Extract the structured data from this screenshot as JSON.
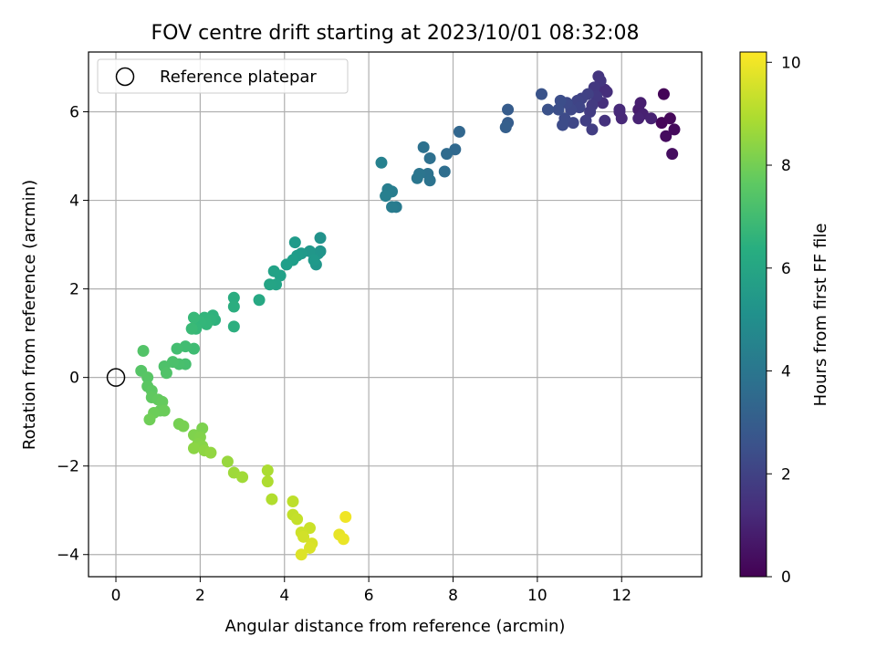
{
  "chart_data": {
    "type": "scatter",
    "title": "FOV centre drift starting at 2023/10/01 08:32:08",
    "xlabel": "Angular distance from reference (arcmin)",
    "ylabel": "Rotation from reference (arcmin)",
    "xlim": [
      -0.65,
      13.9
    ],
    "ylim": [
      -4.5,
      7.35
    ],
    "xticks": [
      0,
      2,
      4,
      6,
      8,
      10,
      12
    ],
    "yticks": [
      -4,
      -2,
      0,
      2,
      4,
      6
    ],
    "grid": true,
    "legend": {
      "location": "upper-left",
      "entries": [
        "Reference platepar"
      ]
    },
    "reference_point": {
      "x": 0,
      "y": 0,
      "label": "Reference platepar"
    },
    "colorbar": {
      "label": "Hours from first FF file",
      "range": [
        0,
        10.2
      ],
      "ticks": [
        0,
        2,
        4,
        6,
        8,
        10
      ],
      "colormap": "viridis"
    },
    "points": [
      {
        "x": 13.0,
        "y": 6.4,
        "h": 0.1
      },
      {
        "x": 12.95,
        "y": 5.75,
        "h": 0.15
      },
      {
        "x": 13.15,
        "y": 5.85,
        "h": 0.2
      },
      {
        "x": 13.25,
        "y": 5.6,
        "h": 0.25
      },
      {
        "x": 13.05,
        "y": 5.45,
        "h": 0.3
      },
      {
        "x": 13.2,
        "y": 5.05,
        "h": 0.35
      },
      {
        "x": 12.4,
        "y": 6.05,
        "h": 0.8
      },
      {
        "x": 12.45,
        "y": 6.2,
        "h": 0.85
      },
      {
        "x": 12.5,
        "y": 5.95,
        "h": 0.9
      },
      {
        "x": 12.7,
        "y": 5.85,
        "h": 0.95
      },
      {
        "x": 12.4,
        "y": 5.85,
        "h": 1.0
      },
      {
        "x": 11.95,
        "y": 6.0,
        "h": 1.1
      },
      {
        "x": 12.0,
        "y": 5.85,
        "h": 1.15
      },
      {
        "x": 11.95,
        "y": 6.05,
        "h": 1.2
      },
      {
        "x": 11.6,
        "y": 6.5,
        "h": 1.3
      },
      {
        "x": 11.65,
        "y": 6.45,
        "h": 1.35
      },
      {
        "x": 11.55,
        "y": 6.2,
        "h": 1.4
      },
      {
        "x": 11.6,
        "y": 5.8,
        "h": 1.45
      },
      {
        "x": 11.45,
        "y": 6.8,
        "h": 1.55
      },
      {
        "x": 11.5,
        "y": 6.7,
        "h": 1.6
      },
      {
        "x": 11.35,
        "y": 6.55,
        "h": 1.65
      },
      {
        "x": 11.4,
        "y": 6.35,
        "h": 1.7
      },
      {
        "x": 11.3,
        "y": 6.15,
        "h": 1.75
      },
      {
        "x": 11.25,
        "y": 6.0,
        "h": 1.8
      },
      {
        "x": 11.3,
        "y": 5.6,
        "h": 1.85
      },
      {
        "x": 11.15,
        "y": 5.8,
        "h": 1.9
      },
      {
        "x": 11.2,
        "y": 6.4,
        "h": 1.95
      },
      {
        "x": 11.05,
        "y": 6.3,
        "h": 2.0
      },
      {
        "x": 10.95,
        "y": 6.25,
        "h": 2.05
      },
      {
        "x": 11.0,
        "y": 6.1,
        "h": 2.1
      },
      {
        "x": 10.85,
        "y": 5.75,
        "h": 2.15
      },
      {
        "x": 10.8,
        "y": 6.05,
        "h": 2.2
      },
      {
        "x": 10.7,
        "y": 6.2,
        "h": 2.25
      },
      {
        "x": 10.65,
        "y": 5.85,
        "h": 2.3
      },
      {
        "x": 10.6,
        "y": 5.7,
        "h": 2.35
      },
      {
        "x": 10.55,
        "y": 6.25,
        "h": 2.4
      },
      {
        "x": 10.5,
        "y": 6.05,
        "h": 2.45
      },
      {
        "x": 10.25,
        "y": 6.05,
        "h": 2.55
      },
      {
        "x": 10.1,
        "y": 6.4,
        "h": 2.6
      },
      {
        "x": 9.3,
        "y": 6.05,
        "h": 2.95
      },
      {
        "x": 9.3,
        "y": 5.75,
        "h": 3.0
      },
      {
        "x": 9.25,
        "y": 5.65,
        "h": 3.05
      },
      {
        "x": 8.15,
        "y": 5.55,
        "h": 3.35
      },
      {
        "x": 8.05,
        "y": 5.15,
        "h": 3.45
      },
      {
        "x": 7.85,
        "y": 5.05,
        "h": 3.55
      },
      {
        "x": 7.8,
        "y": 4.65,
        "h": 3.65
      },
      {
        "x": 7.45,
        "y": 4.95,
        "h": 3.75
      },
      {
        "x": 7.3,
        "y": 5.2,
        "h": 3.8
      },
      {
        "x": 7.4,
        "y": 4.6,
        "h": 3.85
      },
      {
        "x": 7.45,
        "y": 4.45,
        "h": 3.9
      },
      {
        "x": 7.2,
        "y": 4.6,
        "h": 3.95
      },
      {
        "x": 7.15,
        "y": 4.5,
        "h": 4.0
      },
      {
        "x": 6.65,
        "y": 3.85,
        "h": 4.2
      },
      {
        "x": 6.55,
        "y": 3.85,
        "h": 4.25
      },
      {
        "x": 6.55,
        "y": 4.2,
        "h": 4.3
      },
      {
        "x": 6.45,
        "y": 4.25,
        "h": 4.35
      },
      {
        "x": 6.4,
        "y": 4.1,
        "h": 4.4
      },
      {
        "x": 6.3,
        "y": 4.85,
        "h": 4.5
      },
      {
        "x": 4.85,
        "y": 3.15,
        "h": 5.2
      },
      {
        "x": 4.85,
        "y": 2.85,
        "h": 5.25
      },
      {
        "x": 4.8,
        "y": 2.8,
        "h": 5.3
      },
      {
        "x": 4.75,
        "y": 2.55,
        "h": 5.35
      },
      {
        "x": 4.6,
        "y": 2.85,
        "h": 5.4
      },
      {
        "x": 4.7,
        "y": 2.65,
        "h": 5.45
      },
      {
        "x": 4.4,
        "y": 2.8,
        "h": 5.5
      },
      {
        "x": 4.25,
        "y": 3.05,
        "h": 5.55
      },
      {
        "x": 4.3,
        "y": 2.75,
        "h": 5.6
      },
      {
        "x": 4.2,
        "y": 2.65,
        "h": 5.65
      },
      {
        "x": 4.05,
        "y": 2.55,
        "h": 5.7
      },
      {
        "x": 3.9,
        "y": 2.3,
        "h": 5.8
      },
      {
        "x": 3.75,
        "y": 2.4,
        "h": 5.85
      },
      {
        "x": 3.8,
        "y": 2.1,
        "h": 5.9
      },
      {
        "x": 3.65,
        "y": 2.1,
        "h": 5.95
      },
      {
        "x": 3.4,
        "y": 1.75,
        "h": 6.1
      },
      {
        "x": 2.8,
        "y": 1.8,
        "h": 6.3
      },
      {
        "x": 2.8,
        "y": 1.6,
        "h": 6.35
      },
      {
        "x": 2.8,
        "y": 1.15,
        "h": 6.4
      },
      {
        "x": 2.35,
        "y": 1.3,
        "h": 6.5
      },
      {
        "x": 2.3,
        "y": 1.4,
        "h": 6.55
      },
      {
        "x": 2.25,
        "y": 1.3,
        "h": 6.6
      },
      {
        "x": 2.1,
        "y": 1.35,
        "h": 6.65
      },
      {
        "x": 2.15,
        "y": 1.2,
        "h": 6.7
      },
      {
        "x": 2.0,
        "y": 1.25,
        "h": 6.75
      },
      {
        "x": 1.9,
        "y": 1.1,
        "h": 6.8
      },
      {
        "x": 1.85,
        "y": 1.35,
        "h": 6.85
      },
      {
        "x": 1.8,
        "y": 1.1,
        "h": 6.9
      },
      {
        "x": 1.85,
        "y": 0.65,
        "h": 7.0
      },
      {
        "x": 1.65,
        "y": 0.7,
        "h": 7.05
      },
      {
        "x": 1.45,
        "y": 0.65,
        "h": 7.1
      },
      {
        "x": 1.65,
        "y": 0.3,
        "h": 7.15
      },
      {
        "x": 1.5,
        "y": 0.3,
        "h": 7.2
      },
      {
        "x": 1.35,
        "y": 0.35,
        "h": 7.25
      },
      {
        "x": 1.15,
        "y": 0.25,
        "h": 7.3
      },
      {
        "x": 1.2,
        "y": 0.1,
        "h": 7.35
      },
      {
        "x": 0.65,
        "y": 0.6,
        "h": 7.4
      },
      {
        "x": 0.6,
        "y": 0.15,
        "h": 7.45
      },
      {
        "x": 0.75,
        "y": 0.0,
        "h": 7.5
      },
      {
        "x": 0.75,
        "y": -0.2,
        "h": 7.55
      },
      {
        "x": 0.85,
        "y": -0.3,
        "h": 7.6
      },
      {
        "x": 0.85,
        "y": -0.45,
        "h": 7.65
      },
      {
        "x": 1.0,
        "y": -0.5,
        "h": 7.7
      },
      {
        "x": 1.1,
        "y": -0.55,
        "h": 7.75
      },
      {
        "x": 1.05,
        "y": -0.75,
        "h": 7.8
      },
      {
        "x": 1.15,
        "y": -0.75,
        "h": 7.85
      },
      {
        "x": 0.9,
        "y": -0.8,
        "h": 7.9
      },
      {
        "x": 0.8,
        "y": -0.95,
        "h": 7.95
      },
      {
        "x": 1.5,
        "y": -1.05,
        "h": 8.05
      },
      {
        "x": 1.6,
        "y": -1.1,
        "h": 8.1
      },
      {
        "x": 2.05,
        "y": -1.15,
        "h": 8.15
      },
      {
        "x": 1.85,
        "y": -1.3,
        "h": 8.2
      },
      {
        "x": 2.0,
        "y": -1.35,
        "h": 8.25
      },
      {
        "x": 1.95,
        "y": -1.5,
        "h": 8.3
      },
      {
        "x": 2.05,
        "y": -1.55,
        "h": 8.35
      },
      {
        "x": 1.85,
        "y": -1.6,
        "h": 8.4
      },
      {
        "x": 2.1,
        "y": -1.65,
        "h": 8.45
      },
      {
        "x": 2.25,
        "y": -1.7,
        "h": 8.5
      },
      {
        "x": 2.65,
        "y": -1.9,
        "h": 8.6
      },
      {
        "x": 2.8,
        "y": -2.15,
        "h": 8.7
      },
      {
        "x": 3.0,
        "y": -2.25,
        "h": 8.75
      },
      {
        "x": 3.6,
        "y": -2.1,
        "h": 8.9
      },
      {
        "x": 3.6,
        "y": -2.35,
        "h": 8.95
      },
      {
        "x": 3.7,
        "y": -2.75,
        "h": 9.0
      },
      {
        "x": 4.2,
        "y": -2.8,
        "h": 9.2
      },
      {
        "x": 4.2,
        "y": -3.1,
        "h": 9.25
      },
      {
        "x": 4.3,
        "y": -3.2,
        "h": 9.3
      },
      {
        "x": 4.6,
        "y": -3.4,
        "h": 9.4
      },
      {
        "x": 4.4,
        "y": -3.5,
        "h": 9.45
      },
      {
        "x": 4.45,
        "y": -3.6,
        "h": 9.5
      },
      {
        "x": 4.65,
        "y": -3.75,
        "h": 9.6
      },
      {
        "x": 4.6,
        "y": -3.85,
        "h": 9.65
      },
      {
        "x": 4.4,
        "y": -4.0,
        "h": 9.7
      },
      {
        "x": 5.3,
        "y": -3.55,
        "h": 9.85
      },
      {
        "x": 5.4,
        "y": -3.65,
        "h": 9.9
      },
      {
        "x": 5.45,
        "y": -3.15,
        "h": 10.0
      }
    ]
  }
}
